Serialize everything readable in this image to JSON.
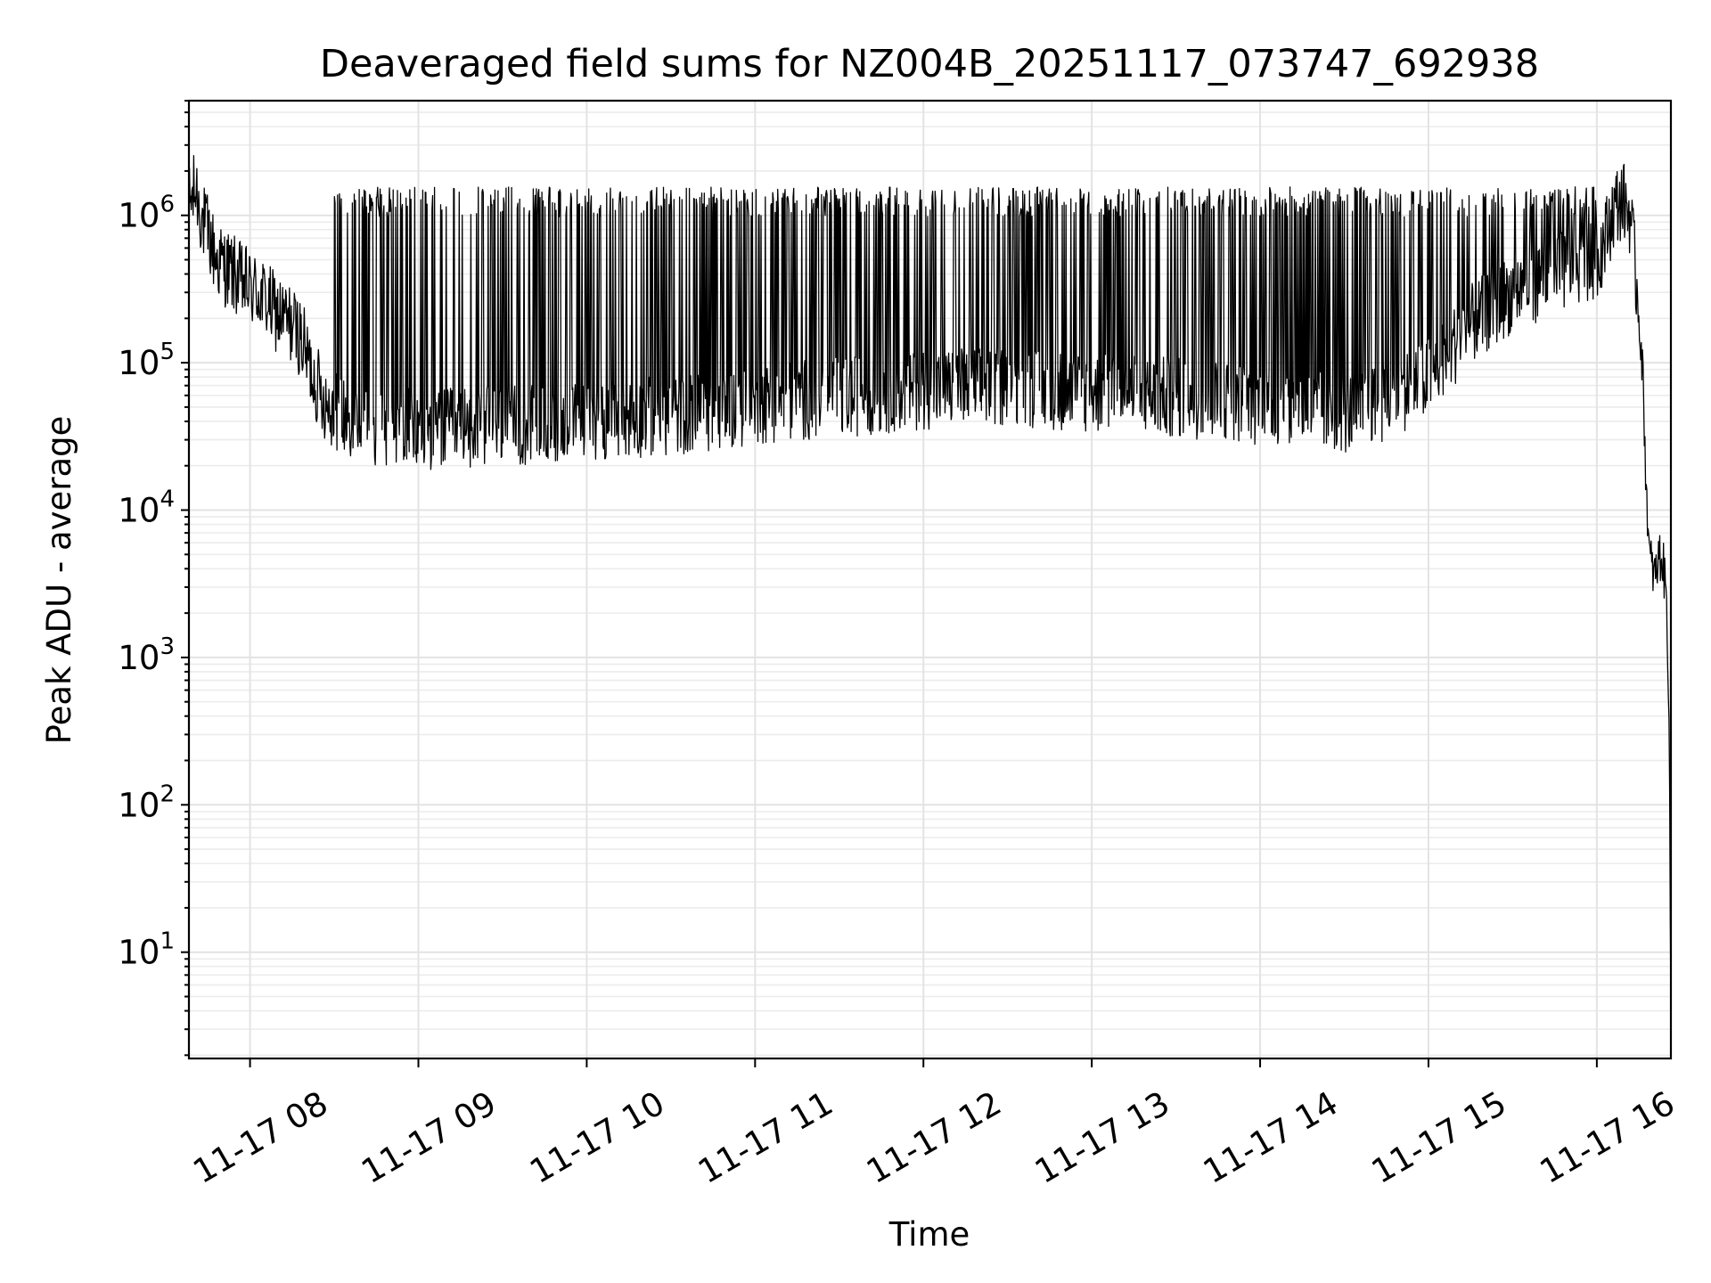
{
  "chart_data": {
    "type": "line",
    "title": "Deaveraged field sums for NZ004B_20251117_073747_692938",
    "xlabel": "Time",
    "ylabel": "Peak ADU - average",
    "yscale": "log",
    "ylim": [
      1.9,
      6000000
    ],
    "xlim_hours": [
      7.637,
      16.44
    ],
    "x_ticks": [
      {
        "hour": 8,
        "label": "11-17 08"
      },
      {
        "hour": 9,
        "label": "11-17 09"
      },
      {
        "hour": 10,
        "label": "11-17 10"
      },
      {
        "hour": 11,
        "label": "11-17 11"
      },
      {
        "hour": 12,
        "label": "11-17 12"
      },
      {
        "hour": 13,
        "label": "11-17 13"
      },
      {
        "hour": 14,
        "label": "11-17 14"
      },
      {
        "hour": 15,
        "label": "11-17 15"
      },
      {
        "hour": 16,
        "label": "11-17 16"
      }
    ],
    "y_ticks": [
      {
        "value": 10,
        "base": "10",
        "exp": "1"
      },
      {
        "value": 100,
        "base": "10",
        "exp": "2"
      },
      {
        "value": 1000,
        "base": "10",
        "exp": "3"
      },
      {
        "value": 10000,
        "base": "10",
        "exp": "4"
      },
      {
        "value": 100000,
        "base": "10",
        "exp": "5"
      },
      {
        "value": 1000000,
        "base": "10",
        "exp": "6"
      }
    ],
    "grid": true,
    "line_color": "#000000",
    "series": [
      {
        "name": "Peak ADU - average",
        "x_hours": [
          7.64,
          7.68,
          7.72,
          7.76,
          7.8,
          7.85,
          7.9,
          7.95,
          8.0,
          8.05,
          8.1,
          8.15,
          8.2,
          8.25,
          8.3,
          8.35,
          8.4,
          8.45,
          8.5,
          8.6,
          8.75,
          9.0,
          9.25,
          9.5,
          9.75,
          10.0,
          10.25,
          10.5,
          10.75,
          11.0,
          11.25,
          11.5,
          11.75,
          12.0,
          12.25,
          12.5,
          12.75,
          13.0,
          13.25,
          13.5,
          13.75,
          14.0,
          14.25,
          14.5,
          14.75,
          15.0,
          15.25,
          15.5,
          15.75,
          16.0,
          16.05,
          16.1,
          16.15,
          16.2,
          16.24,
          16.27,
          16.29,
          16.31,
          16.33,
          16.35,
          16.37,
          16.39,
          16.41,
          16.43,
          16.44
        ],
        "baseline": [
          1200000,
          1500000,
          900000,
          700000,
          500000,
          450000,
          400000,
          350000,
          320000,
          300000,
          260000,
          220000,
          200000,
          180000,
          150000,
          100000,
          70000,
          55000,
          48000,
          42000,
          38000,
          35000,
          36000,
          38000,
          37000,
          40000,
          42000,
          44000,
          47000,
          52000,
          56000,
          58000,
          62000,
          66000,
          68000,
          70000,
          66000,
          62000,
          60000,
          58000,
          56000,
          52000,
          48000,
          45000,
          55000,
          80000,
          180000,
          300000,
          400000,
          500000,
          700000,
          1100000,
          1300000,
          1000000,
          300000,
          100000,
          20000,
          5000,
          4000,
          3500,
          5000,
          4500,
          3000,
          500,
          3
        ],
        "peak_level": 1300000,
        "min_level": 20000
      }
    ]
  }
}
